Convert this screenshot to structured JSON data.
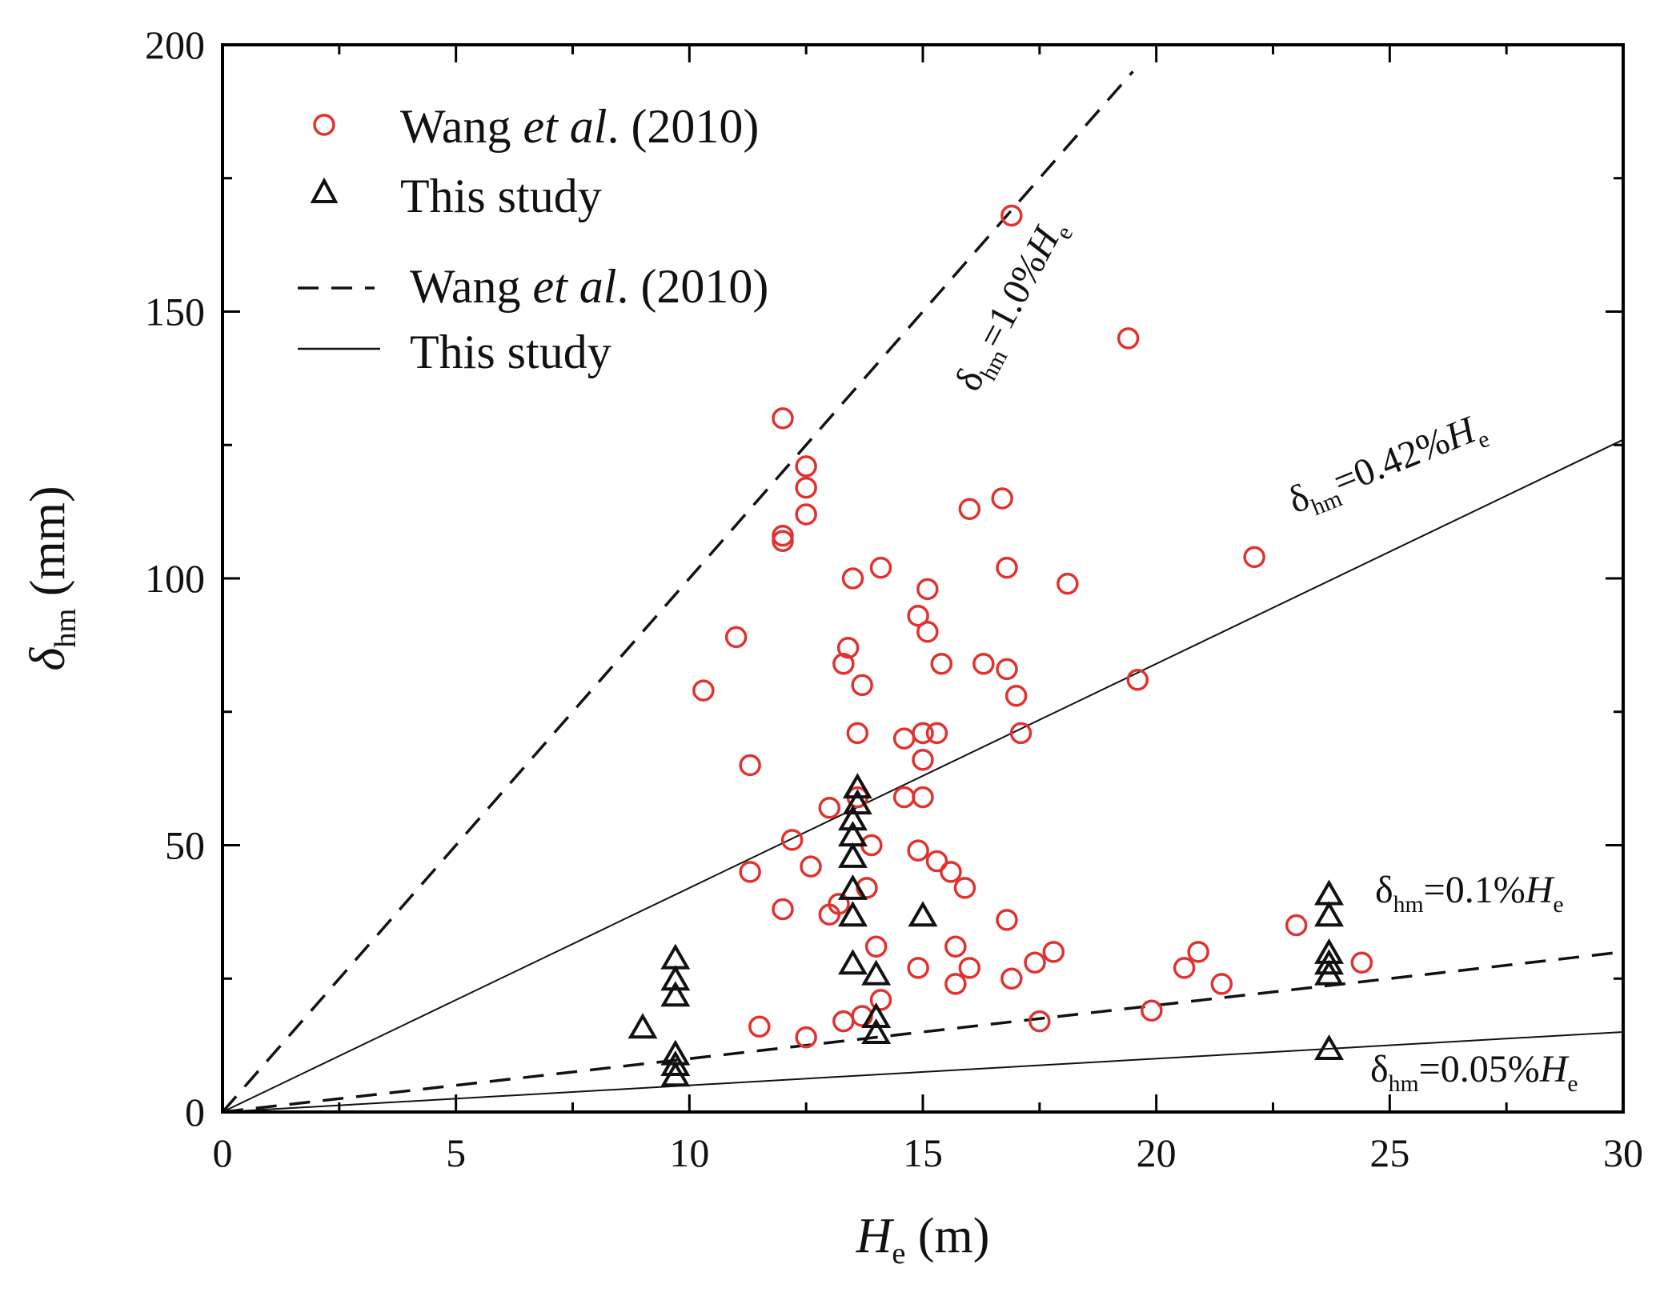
{
  "chart_data": {
    "type": "scatter",
    "xlabel": {
      "main": "H",
      "sub": "e",
      "unit": " (m)"
    },
    "ylabel": {
      "main": "δ",
      "sub": "hm",
      "unit": " (mm)"
    },
    "xlim": [
      0,
      30
    ],
    "ylim": [
      0,
      200
    ],
    "xticks": [
      "0",
      "5",
      "10",
      "15",
      "20",
      "25",
      "30"
    ],
    "yticks": [
      "0",
      "50",
      "100",
      "150",
      "200"
    ],
    "legend": {
      "placement": "top-left",
      "items": [
        {
          "kind": "circle",
          "pre": "Wang ",
          "ital": "et al",
          "post": ". (2010)"
        },
        {
          "kind": "triangle",
          "pre": "This study",
          "ital": "",
          "post": ""
        },
        {
          "kind": "dashed",
          "pre": "Wang ",
          "ital": "et al",
          "post": ". (2010)"
        },
        {
          "kind": "solid",
          "pre": "This study",
          "ital": "",
          "post": ""
        }
      ]
    },
    "colors": {
      "wang": "#e0322e",
      "study": "#111111",
      "axis": "#000000"
    },
    "lines": [
      {
        "name": "wang-1.0pct",
        "style": "dashed",
        "slope": 10.0,
        "x_end": 19.5,
        "label": {
          "pre": "δ",
          "sub": "hm",
          "mid": "=1.0%",
          "it": "H",
          "sub2": "e"
        }
      },
      {
        "name": "study-0.42pct",
        "style": "solid",
        "slope": 4.2,
        "x_end": 30,
        "label": {
          "pre": "δ",
          "sub": "hm",
          "mid": "=0.42%",
          "it": "H",
          "sub2": "e"
        }
      },
      {
        "name": "wang-0.1pct",
        "style": "dashed",
        "slope": 1.0,
        "x_end": 30,
        "label": {
          "pre": "δ",
          "sub": "hm",
          "mid": "=0.1%",
          "it": "H",
          "sub2": "e"
        }
      },
      {
        "name": "study-0.05pct",
        "style": "solid",
        "slope": 0.5,
        "x_end": 30,
        "label": {
          "pre": "δ",
          "sub": "hm",
          "mid": "=0.05%",
          "it": "H",
          "sub2": "e"
        }
      }
    ],
    "series": [
      {
        "name": "Wang et al. (2010)",
        "marker": "circle",
        "points": [
          [
            16.9,
            168
          ],
          [
            19.4,
            145
          ],
          [
            12.0,
            130
          ],
          [
            12.5,
            121
          ],
          [
            12.5,
            117
          ],
          [
            12.5,
            112
          ],
          [
            12.0,
            108
          ],
          [
            12.0,
            107
          ],
          [
            16.0,
            113
          ],
          [
            16.7,
            115
          ],
          [
            14.1,
            102
          ],
          [
            16.8,
            102
          ],
          [
            18.1,
            99
          ],
          [
            22.1,
            104
          ],
          [
            13.5,
            100
          ],
          [
            11.0,
            89
          ],
          [
            10.3,
            79
          ],
          [
            13.4,
            87
          ],
          [
            13.3,
            84
          ],
          [
            13.7,
            80
          ],
          [
            14.9,
            93
          ],
          [
            15.1,
            98
          ],
          [
            15.1,
            90
          ],
          [
            15.4,
            84
          ],
          [
            16.3,
            84
          ],
          [
            16.8,
            83
          ],
          [
            17.0,
            78
          ],
          [
            17.1,
            71
          ],
          [
            19.6,
            81
          ],
          [
            13.6,
            71
          ],
          [
            14.6,
            70
          ],
          [
            15.0,
            71
          ],
          [
            15.3,
            71
          ],
          [
            15.0,
            66
          ],
          [
            11.3,
            65
          ],
          [
            13.0,
            57
          ],
          [
            13.6,
            59
          ],
          [
            14.6,
            59
          ],
          [
            15.0,
            59
          ],
          [
            12.2,
            51
          ],
          [
            12.6,
            46
          ],
          [
            11.3,
            45
          ],
          [
            13.9,
            50
          ],
          [
            14.9,
            49
          ],
          [
            15.3,
            47
          ],
          [
            15.6,
            45
          ],
          [
            15.9,
            42
          ],
          [
            13.8,
            42
          ],
          [
            12.0,
            38
          ],
          [
            13.0,
            37
          ],
          [
            13.2,
            39
          ],
          [
            16.8,
            36
          ],
          [
            23.0,
            35
          ],
          [
            14.0,
            31
          ],
          [
            15.7,
            31
          ],
          [
            17.8,
            30
          ],
          [
            20.9,
            30
          ],
          [
            14.9,
            27
          ],
          [
            16.0,
            27
          ],
          [
            17.4,
            28
          ],
          [
            16.9,
            25
          ],
          [
            15.7,
            24
          ],
          [
            20.6,
            27
          ],
          [
            24.4,
            28
          ],
          [
            21.4,
            24
          ],
          [
            14.1,
            21
          ],
          [
            13.7,
            18
          ],
          [
            13.3,
            17
          ],
          [
            11.5,
            16
          ],
          [
            12.5,
            14
          ],
          [
            17.5,
            17
          ],
          [
            19.9,
            19
          ]
        ]
      },
      {
        "name": "This study",
        "marker": "triangle",
        "points": [
          [
            9.7,
            29
          ],
          [
            9.7,
            25
          ],
          [
            9.7,
            22
          ],
          [
            9.0,
            16
          ],
          [
            9.7,
            11
          ],
          [
            9.7,
            9
          ],
          [
            9.7,
            7
          ],
          [
            13.6,
            61
          ],
          [
            13.6,
            58
          ],
          [
            13.5,
            55
          ],
          [
            13.5,
            52
          ],
          [
            13.5,
            48
          ],
          [
            13.5,
            42
          ],
          [
            13.5,
            37
          ],
          [
            13.5,
            28
          ],
          [
            14.0,
            26
          ],
          [
            14.0,
            18
          ],
          [
            14.0,
            15
          ],
          [
            15.0,
            37
          ],
          [
            23.7,
            41
          ],
          [
            23.7,
            37
          ],
          [
            23.7,
            30
          ],
          [
            23.7,
            28
          ],
          [
            23.7,
            26
          ],
          [
            23.7,
            12
          ]
        ]
      }
    ]
  }
}
